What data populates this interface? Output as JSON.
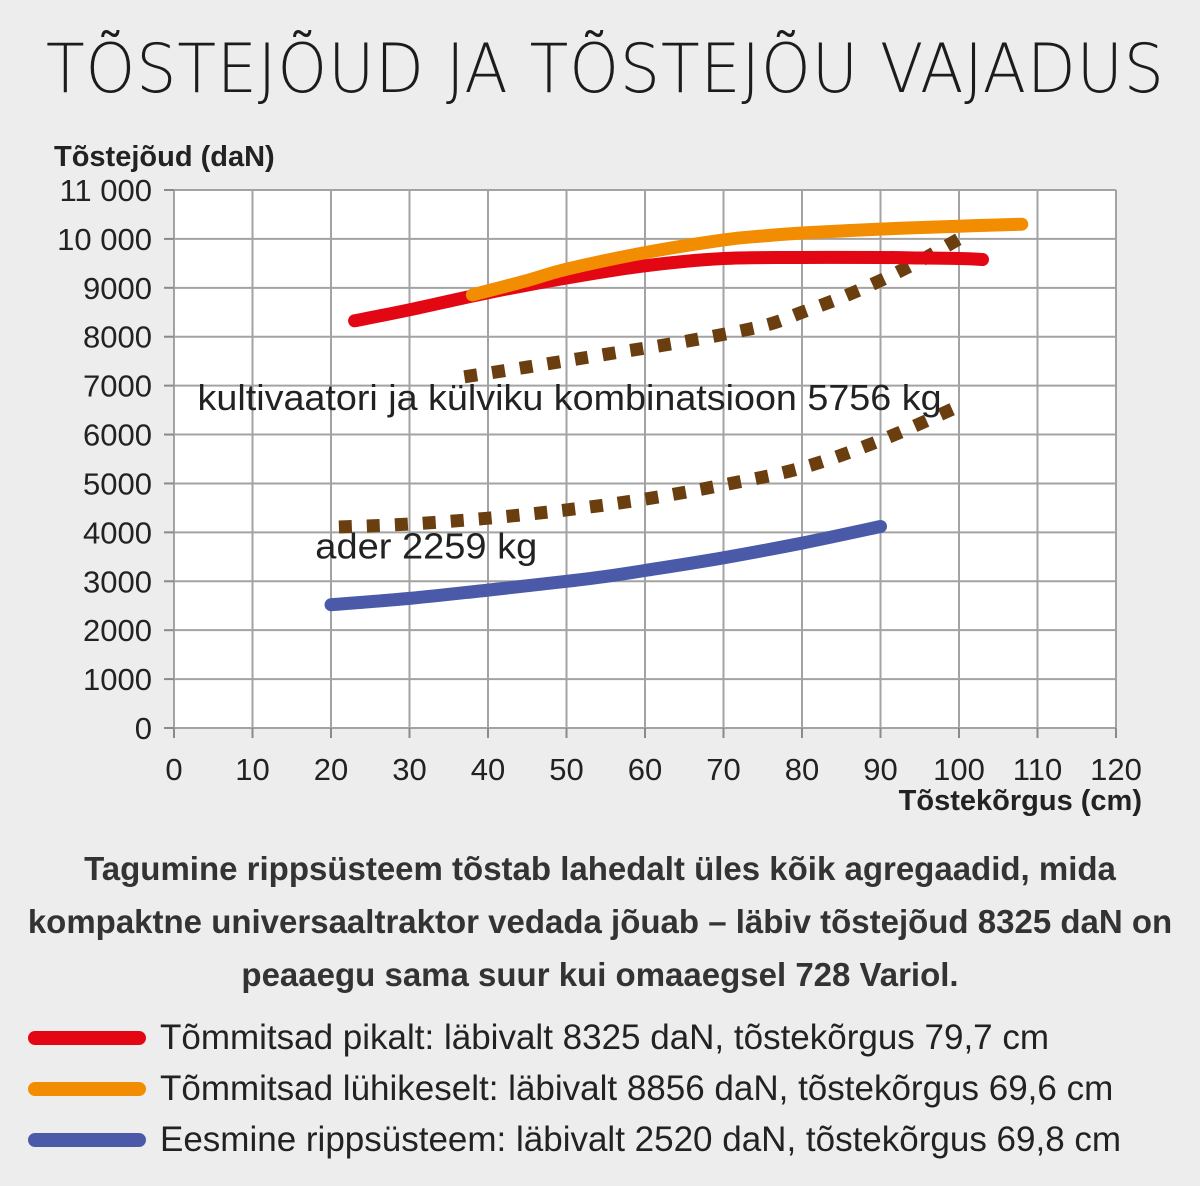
{
  "title": "TÕSTEJÕUD JA TÕSTEJÕU VAJADUS",
  "caption": "Tagumine rippsüsteem tõstab lahedalt üles kõik agregaadid, mida kompaktne universaaltraktor vedada jõuab – läbiv tõstejõud 8325 daN on peaaegu sama suur kui omaaegsel 728 Variol.",
  "chart_data": {
    "type": "line",
    "title": "TÕSTEJÕUD JA TÕSTEJÕU VAJADUS",
    "xlabel": "Tõstekõrgus (cm)",
    "ylabel": "Tõstejõud (daN)",
    "xlim": [
      0,
      120
    ],
    "ylim": [
      0,
      11000
    ],
    "x_ticks": [
      0,
      10,
      20,
      30,
      40,
      50,
      60,
      70,
      80,
      90,
      100,
      110,
      120
    ],
    "y_ticks": [
      0,
      1000,
      2000,
      3000,
      4000,
      5000,
      6000,
      7000,
      8000,
      9000,
      10000,
      11000
    ],
    "x_tick_labels": [
      "0",
      "10",
      "20",
      "30",
      "40",
      "50",
      "60",
      "70",
      "80",
      "90",
      "100",
      "110",
      "120"
    ],
    "y_tick_labels": [
      "0",
      "1000",
      "2000",
      "3000",
      "4000",
      "5000",
      "6000",
      "7000",
      "8000",
      "9000",
      "10 000",
      "11 000"
    ],
    "grid": true,
    "legend_position": "bottom",
    "series": [
      {
        "name": "Tõmmitsad pikalt: läbivalt 8325 daN, tõstekõrgus 79,7 cm",
        "color": "#e30613",
        "style": "solid",
        "x": [
          23,
          30,
          40,
          50,
          60,
          70,
          80,
          90,
          95,
          100,
          103
        ],
        "y": [
          8325,
          8550,
          8900,
          9200,
          9450,
          9600,
          9620,
          9620,
          9610,
          9600,
          9580
        ]
      },
      {
        "name": "Tõmmitsad lühikeselt: läbivalt 8856 daN, tõstekõrgus 69,6 cm",
        "color": "#f28c00",
        "style": "solid",
        "x": [
          38,
          45,
          50,
          60,
          70,
          75,
          80,
          90,
          100,
          108
        ],
        "y": [
          8856,
          9150,
          9380,
          9720,
          9980,
          10060,
          10120,
          10200,
          10260,
          10300
        ]
      },
      {
        "name": "Eesmine rippsüsteem: läbivalt 2520 daN, tõstekõrgus 69,8 cm",
        "color": "#4a5aa8",
        "style": "solid",
        "x": [
          20,
          30,
          40,
          50,
          55,
          60,
          70,
          80,
          90
        ],
        "y": [
          2520,
          2650,
          2820,
          3000,
          3100,
          3220,
          3480,
          3780,
          4120
        ]
      },
      {
        "name": "kultivaatori ja külviku kombinatsioon 5756 kg",
        "color": "#6b3e10",
        "style": "dotted",
        "x": [
          37,
          45,
          55,
          65,
          75,
          80,
          85,
          90,
          95,
          100
        ],
        "y": [
          7180,
          7380,
          7640,
          7900,
          8220,
          8500,
          8800,
          9150,
          9550,
          10000
        ]
      },
      {
        "name": "ader 2259 kg",
        "color": "#6b3e10",
        "style": "dotted",
        "x": [
          21,
          30,
          40,
          50,
          60,
          70,
          80,
          90,
          100
        ],
        "y": [
          4110,
          4170,
          4290,
          4460,
          4680,
          4970,
          5320,
          5880,
          6580
        ]
      }
    ],
    "annotations": [
      {
        "text": "kultivaatori ja külviku kombinatsioon 5756 kg",
        "x": 3,
        "y": 6500
      },
      {
        "text": "ader 2259 kg",
        "x": 18,
        "y": 3470
      }
    ]
  },
  "legend": [
    {
      "color": "#e30613",
      "label": "Tõmmitsad pikalt: läbivalt 8325 daN, tõstekõrgus 79,7 cm"
    },
    {
      "color": "#f28c00",
      "label": "Tõmmitsad lühikeselt: läbivalt 8856 daN, tõstekõrgus 69,6 cm"
    },
    {
      "color": "#4a5aa8",
      "label": "Eesmine rippsüsteem: läbivalt 2520 daN, tõstekõrgus 69,8 cm"
    }
  ]
}
